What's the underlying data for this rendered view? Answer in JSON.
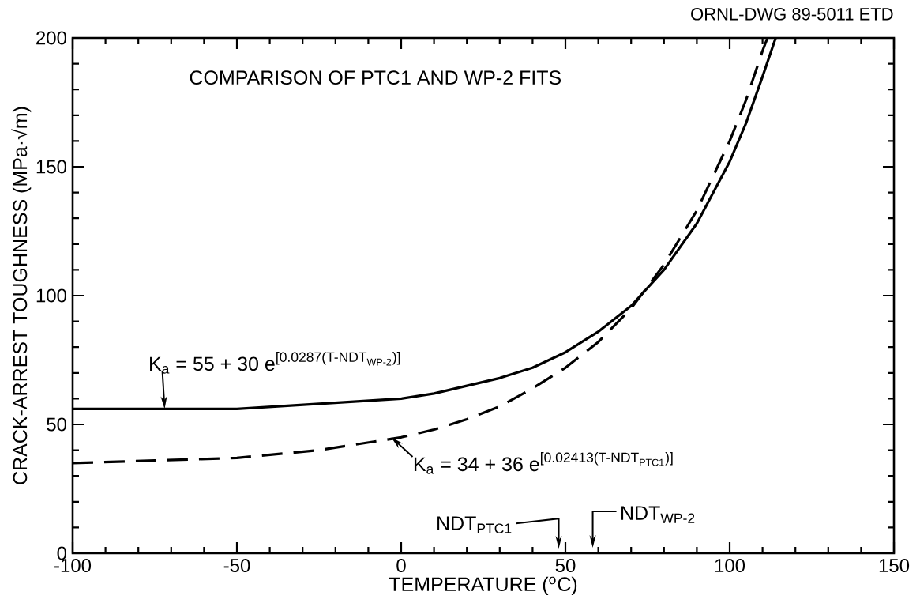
{
  "chart_data": {
    "type": "line",
    "title": "COMPARISON OF PTC1 AND WP-2 FITS",
    "xlabel": "TEMPERATURE ($^{o}$C)",
    "ylabel": "CRACK-ARREST TOUGHNESS (MPa·√m)",
    "xlim": [
      -100,
      150
    ],
    "xticks": [
      -100,
      -50,
      0,
      50,
      100,
      150
    ],
    "ylim": [
      0,
      200
    ],
    "yticks": [
      0,
      50,
      100,
      150,
      200
    ],
    "series": [
      {
        "color": "#000000",
        "line_style": "solid",
        "x": [
          -100,
          -75,
          -50,
          -25,
          0,
          10,
          20,
          30,
          40,
          50,
          60,
          70,
          80,
          90,
          100,
          105,
          110,
          114
        ],
        "values": [
          56,
          56,
          56,
          58,
          60,
          62,
          65,
          68,
          72,
          78,
          86,
          96,
          110,
          128,
          152,
          167,
          185,
          200
        ]
      },
      {
        "color": "#000000",
        "line_style": "dashed",
        "x": [
          -100,
          -75,
          -50,
          -25,
          0,
          10,
          20,
          30,
          40,
          50,
          60,
          70,
          80,
          90,
          100,
          105,
          110,
          111.5
        ],
        "values": [
          35,
          36,
          37,
          40,
          45,
          48,
          52,
          57,
          64,
          72,
          82,
          95,
          112,
          133,
          160,
          176,
          195,
          200
        ]
      }
    ],
    "annotations": [
      "ORNL-DWG 89-5011 ETD",
      {
        "text": "\\text{K}_{\\text{a}}\\text{ = 55 + 30 e}^{\\text{[0.0287(T-NDT}_{\\text{WP-2}}\\text{)]}}",
        "x": -72,
        "y": 56
      },
      {
        "text": "\\text{K}_{\\text{a}}\\text{ = 34 + 36 e}^{\\text{[0.02413(T-NDT}_{\\text{PTC1}}\\text{)]}}",
        "x": -3,
        "y": 45
      },
      "NDT$_{PTC1}$",
      "NDT$_{WP-2}$"
    ]
  }
}
